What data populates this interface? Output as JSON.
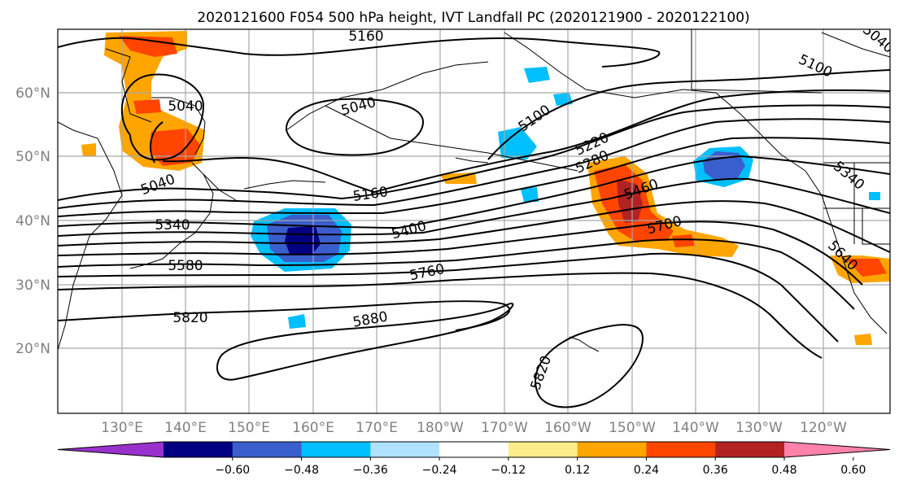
{
  "title": "2020121600 F054 500 hPa height, IVT Landfall PC (2020121900 - 2020122100)",
  "lat_labels": [
    "20°N",
    "30°N",
    "40°N",
    "50°N",
    "60°N"
  ],
  "lon_labels": [
    "130°E",
    "140°E",
    "150°E",
    "160°E",
    "170°E",
    "180°W",
    "170°W",
    "160°W",
    "150°W",
    "140°W",
    "130°W",
    "120°W"
  ],
  "contour_labels": [
    "5160",
    "5040",
    "5040",
    "5040",
    "5100",
    "5100",
    "5220",
    "5280",
    "5460",
    "5700",
    "5160",
    "5340",
    "5400",
    "5580",
    "5760",
    "5820",
    "5880",
    "5820",
    "5340",
    "5640",
    "5040",
    "5400"
  ],
  "colorbar": {
    "ticks": [
      "−0.60",
      "−0.48",
      "−0.36",
      "−0.24",
      "−0.12",
      "0.12",
      "0.24",
      "0.36",
      "0.48",
      "0.60"
    ],
    "colors": [
      "#9932cc",
      "#000080",
      "#3a5fcd",
      "#00bfff",
      "#b0e2ff",
      "#ffffff",
      "#ffec8b",
      "#ffa500",
      "#ff4500",
      "#b22222",
      "#ff82ab"
    ]
  },
  "colors": {
    "contour": "#000000",
    "grid": "#a8a8a8",
    "axis_labels": "#808080"
  }
}
